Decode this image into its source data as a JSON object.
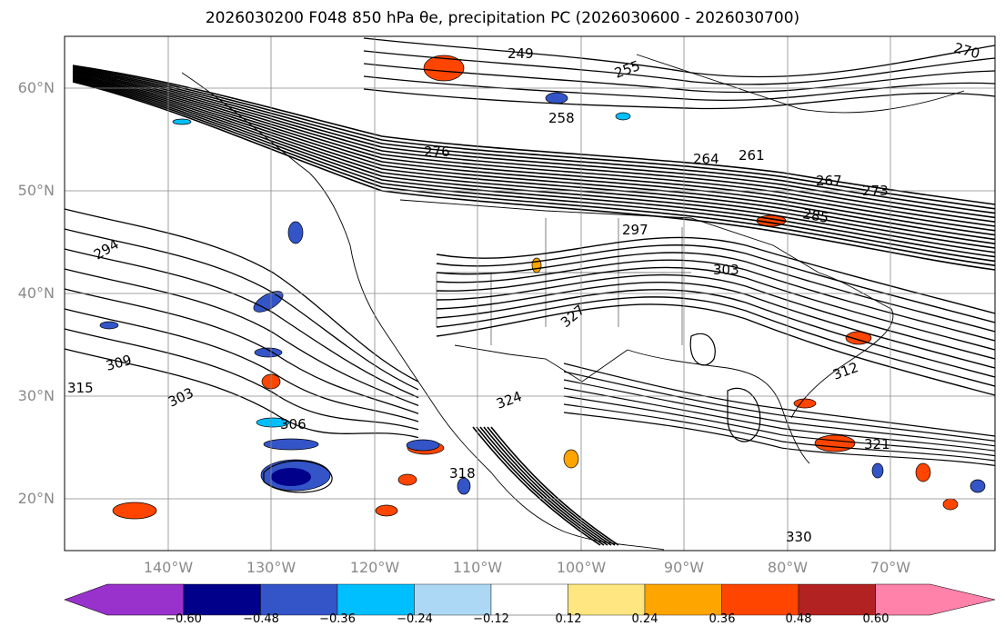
{
  "title": "2026030200 F048 850 hPa θe, precipitation PC (2026030600 - 2026030700)",
  "map": {
    "lat_labels": [
      "60°N",
      "50°N",
      "40°N",
      "30°N",
      "20°N"
    ],
    "lon_labels": [
      "140°W",
      "130°W",
      "120°W",
      "110°W",
      "100°W",
      "90°W",
      "80°W",
      "70°W"
    ],
    "contour_labels": [
      "249",
      "255",
      "258",
      "264",
      "261",
      "267",
      "273",
      "270",
      "276",
      "285",
      "294",
      "297",
      "303",
      "309",
      "315",
      "303",
      "306",
      "312",
      "318",
      "321",
      "324",
      "327",
      "330"
    ],
    "colors": {
      "contour": "#000000",
      "grid": "#888888",
      "land_border": "#000000"
    }
  },
  "colorbar": {
    "ticks": [
      "−0.60",
      "−0.48",
      "−0.36",
      "−0.24",
      "−0.12",
      "0.12",
      "0.24",
      "0.36",
      "0.48",
      "0.60"
    ],
    "colors": [
      "#9932cc",
      "#00008b",
      "#3455c8",
      "#00bfff",
      "#add8f5",
      "#ffffff",
      "#ffe680",
      "#ffa500",
      "#ff4500",
      "#b22222",
      "#ff82ab"
    ]
  }
}
